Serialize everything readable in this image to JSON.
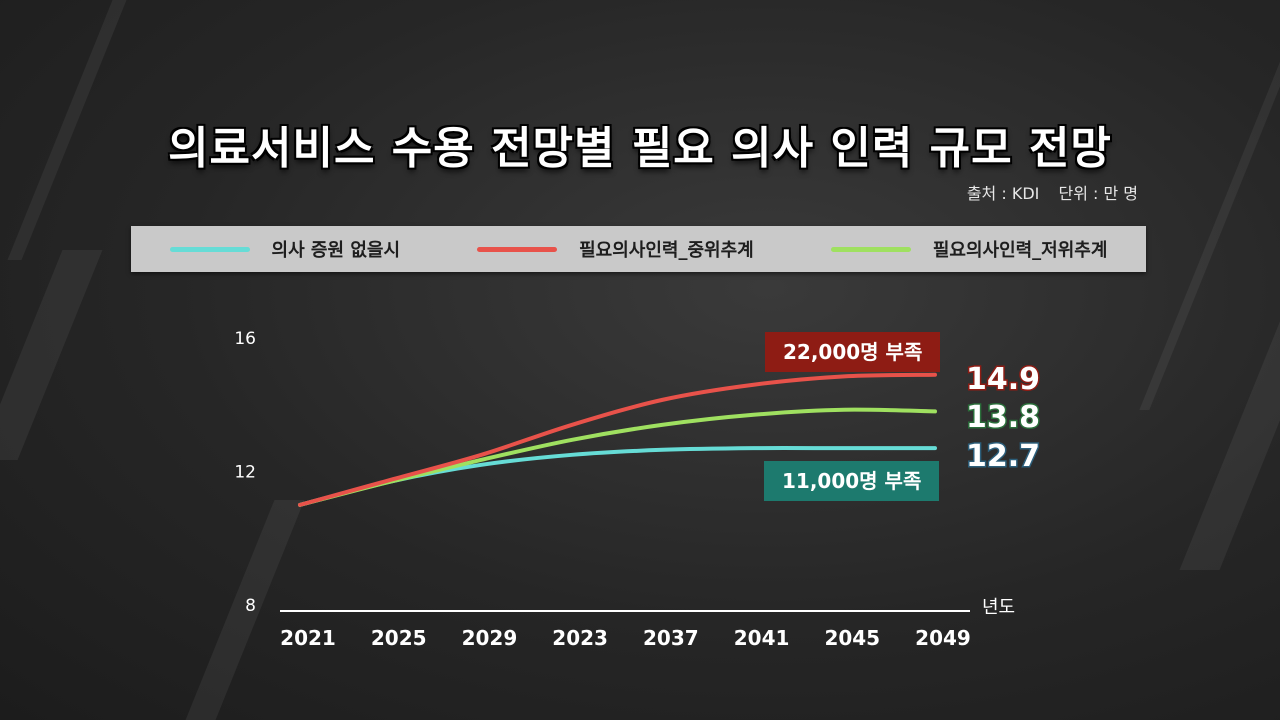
{
  "title": "의료서비스 수용 전망별 필요 의사 인력 규모 전망",
  "source": "출처 : KDI",
  "unit": "단위 : 만 명",
  "callouts": {
    "mid": "22,000명 부족",
    "low": "11,000명 부족"
  },
  "colors": {
    "series_none": "#66dcd6",
    "series_mid": "#e8524a",
    "series_low": "#9fe060",
    "callout_mid": "#8e1c14",
    "callout_low": "#1d7a6e",
    "end_mid_outline": "#8e1c14",
    "end_low_outline": "#2a6e3a",
    "end_none_outline": "#2c5e7a"
  },
  "chart_data": {
    "type": "line",
    "categories": [
      "2021",
      "2025",
      "2029",
      "2023",
      "2037",
      "2041",
      "2045",
      "2049"
    ],
    "xlabel": "년도",
    "ylabel": "",
    "ylim": [
      8,
      16
    ],
    "yticks": [
      "8",
      "12",
      "16"
    ],
    "series": [
      {
        "name": "의사 증원 없을시",
        "values": [
          11.0,
          11.7,
          12.2,
          12.5,
          12.65,
          12.7,
          12.7,
          12.7
        ],
        "end_label": "12.7"
      },
      {
        "name": "필요의사인력_중위추계",
        "values": [
          11.0,
          11.75,
          12.5,
          13.4,
          14.15,
          14.6,
          14.85,
          14.9
        ],
        "end_label": "14.9"
      },
      {
        "name": "필요의사인력_저위추계",
        "values": [
          11.0,
          11.7,
          12.35,
          12.95,
          13.4,
          13.7,
          13.85,
          13.8
        ],
        "end_label": "13.8"
      }
    ]
  }
}
